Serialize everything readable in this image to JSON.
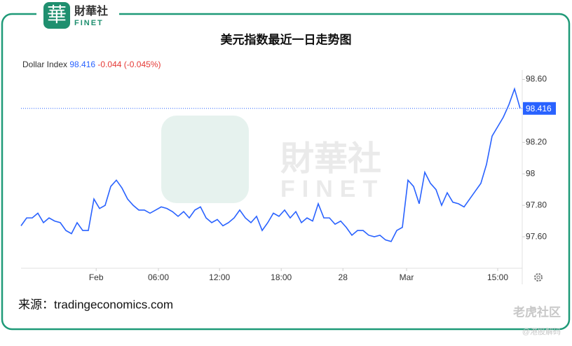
{
  "logo": {
    "mark": "華",
    "name": "財華社",
    "sub": "FINET"
  },
  "chart_data": {
    "type": "line",
    "title": "美元指数最近一日走势图",
    "series_name": "Dollar Index",
    "current": 98.416,
    "change_label": "-0.044 (-0.045%)",
    "color": "#2962ff",
    "xlim": [
      0,
      89
    ],
    "xticks": [
      {
        "value": 13.4,
        "label": "Feb"
      },
      {
        "value": 24.5,
        "label": "06:00"
      },
      {
        "value": 35.4,
        "label": "12:00"
      },
      {
        "value": 46.4,
        "label": "18:00"
      },
      {
        "value": 57.4,
        "label": "28"
      },
      {
        "value": 68.75,
        "label": "Mar"
      },
      {
        "value": 85,
        "label": "15:00"
      }
    ],
    "ylim": [
      97.4,
      98.66
    ],
    "yticks": [
      {
        "value": 98.6,
        "label": "98.60"
      },
      {
        "value": 98.2,
        "label": "98.20"
      },
      98,
      {
        "value": 97.8,
        "label": "97.80"
      },
      {
        "value": 97.6,
        "label": "97.60"
      }
    ],
    "values": [
      97.67,
      97.72,
      97.72,
      97.75,
      97.69,
      97.72,
      97.7,
      97.69,
      97.64,
      97.62,
      97.69,
      97.64,
      97.64,
      97.84,
      97.78,
      97.8,
      97.92,
      97.96,
      97.91,
      97.84,
      97.8,
      97.77,
      97.77,
      97.75,
      97.77,
      97.79,
      97.78,
      97.76,
      97.73,
      97.76,
      97.72,
      97.77,
      97.79,
      97.72,
      97.69,
      97.71,
      97.67,
      97.69,
      97.72,
      97.77,
      97.72,
      97.69,
      97.73,
      97.64,
      97.69,
      97.75,
      97.73,
      97.77,
      97.72,
      97.76,
      97.69,
      97.72,
      97.7,
      97.81,
      97.72,
      97.72,
      97.68,
      97.7,
      97.66,
      97.61,
      97.64,
      97.64,
      97.61,
      97.6,
      97.61,
      97.58,
      97.57,
      97.64,
      97.66,
      97.96,
      97.92,
      97.81,
      98.01,
      97.94,
      97.9,
      97.8,
      97.88,
      97.82,
      97.81,
      97.79,
      97.84,
      97.89,
      97.94,
      98.06,
      98.24,
      98.3,
      98.36,
      98.44,
      98.54,
      98.416
    ]
  },
  "watermark": {
    "name": "財華社",
    "sub": "FINET"
  },
  "source": "来源：tradingeconomics.com",
  "corner": {
    "brand": "老虎社区",
    "handle": "@港股解码"
  }
}
